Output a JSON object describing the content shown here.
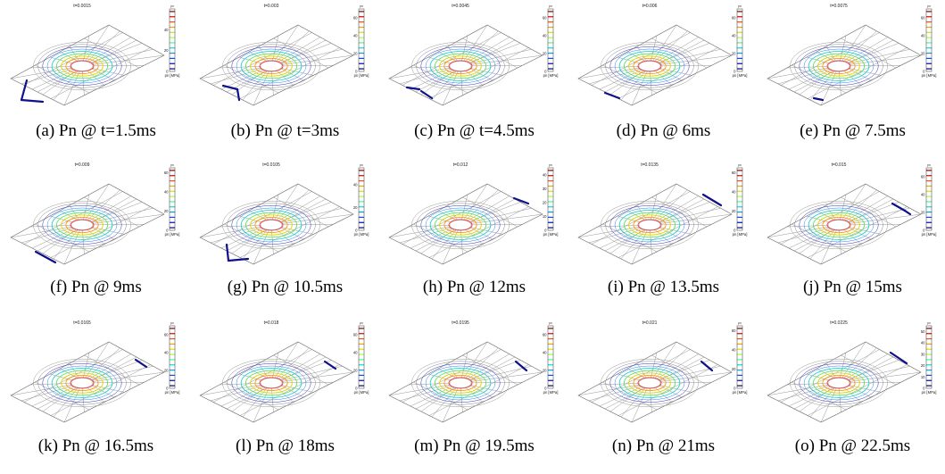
{
  "colorbar": {
    "unit_label": "pn [MPa]",
    "top_label": "pn",
    "colors": [
      "#000080",
      "#0000c8",
      "#0050ff",
      "#00a0ff",
      "#00e0e0",
      "#40ff90",
      "#a0ff40",
      "#e0e000",
      "#ffa000",
      "#ff5000",
      "#e00000",
      "#800000"
    ]
  },
  "panels": [
    {
      "time_label": "t=0.0015",
      "caption": "(a) Pn @ t=1.5ms",
      "ticks": [
        "0",
        "20",
        "40"
      ],
      "cbar_max": 60
    },
    {
      "time_label": "t=0.003",
      "caption": "(b) Pn @ t=3ms",
      "ticks": [
        "0",
        "20",
        "40",
        "60"
      ],
      "cbar_max": 70
    },
    {
      "time_label": "t=0.0045",
      "caption": "(c) Pn @ t=4.5ms",
      "ticks": [
        "0",
        "20",
        "40",
        "60"
      ],
      "cbar_max": 70
    },
    {
      "time_label": "t=0.006",
      "caption": "(d) Pn @ 6ms",
      "ticks": [
        "0",
        "20",
        "40",
        "60"
      ],
      "cbar_max": 70
    },
    {
      "time_label": "t=0.0075",
      "caption": "(e) Pn @ 7.5ms",
      "ticks": [
        "0",
        "20",
        "40",
        "60"
      ],
      "cbar_max": 70
    },
    {
      "time_label": "t=0.009",
      "caption": "(f) Pn @ 9ms",
      "ticks": [
        "0",
        "20",
        "40",
        "60"
      ],
      "cbar_max": 65
    },
    {
      "time_label": "t=0.0105",
      "caption": "(g) Pn @ 10.5ms",
      "ticks": [
        "0",
        "20",
        "40"
      ],
      "cbar_max": 55
    },
    {
      "time_label": "t=0.012",
      "caption": "(h) Pn @ 12ms",
      "ticks": [
        "0",
        "10",
        "20",
        "30",
        "40"
      ],
      "cbar_max": 45
    },
    {
      "time_label": "t=0.0135",
      "caption": "(i) Pn @ 13.5ms",
      "ticks": [
        "0",
        "20",
        "40",
        "60"
      ],
      "cbar_max": 65
    },
    {
      "time_label": "t=0.015",
      "caption": "(j) Pn @ 15ms",
      "ticks": [
        "0",
        "20",
        "40",
        "60"
      ],
      "cbar_max": 70
    },
    {
      "time_label": "t=0.0165",
      "caption": "(k) Pn @ 16.5ms",
      "ticks": [
        "0",
        "20",
        "40",
        "60"
      ],
      "cbar_max": 70
    },
    {
      "time_label": "t=0.018",
      "caption": "(l) Pn @ 18ms",
      "ticks": [
        "0",
        "20",
        "40",
        "60"
      ],
      "cbar_max": 70
    },
    {
      "time_label": "t=0.0195",
      "caption": "(m) Pn @ 19.5ms",
      "ticks": [
        "0",
        "20",
        "40",
        "60"
      ],
      "cbar_max": 70
    },
    {
      "time_label": "t=0.021",
      "caption": "(n) Pn @ 21ms",
      "ticks": [
        "0",
        "20",
        "40",
        "60"
      ],
      "cbar_max": 65
    },
    {
      "time_label": "t=0.0225",
      "caption": "(o) Pn @ 22.5ms",
      "ticks": [
        "0",
        "10",
        "20",
        "30",
        "40",
        "50"
      ],
      "cbar_max": 55
    }
  ]
}
